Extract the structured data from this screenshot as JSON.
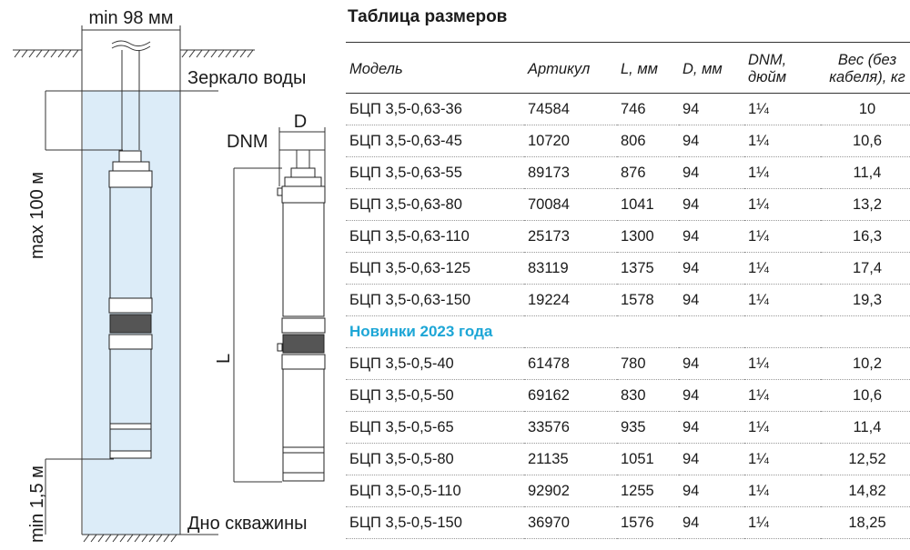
{
  "diagram": {
    "well_width_label": "min 98 мм",
    "water_level_label": "Зеркало воды",
    "max_depth_label": "max 100 м",
    "min_bottom_label": "min 1,5 м",
    "bottom_label": "Дно скважины",
    "dnm_label": "DNM",
    "d_label": "D",
    "l_label": "L",
    "water_color": "#dcecf8"
  },
  "table": {
    "title": "Таблица размеров",
    "headers": [
      "Модель",
      "Артикул",
      "L, мм",
      "D, мм",
      "DNM, дюйм",
      "Вес (без кабеля), кг"
    ],
    "rows": [
      [
        "БЦП 3,5-0,63-36",
        "74584",
        "746",
        "94",
        "1¼",
        "10"
      ],
      [
        "БЦП 3,5-0,63-45",
        "10720",
        "806",
        "94",
        "1¼",
        "10,6"
      ],
      [
        "БЦП 3,5-0,63-55",
        "89173",
        "876",
        "94",
        "1¼",
        "11,4"
      ],
      [
        "БЦП 3,5-0,63-80",
        "70084",
        "1041",
        "94",
        "1¼",
        "13,2"
      ],
      [
        "БЦП 3,5-0,63-110",
        "25173",
        "1300",
        "94",
        "1¼",
        "16,3"
      ],
      [
        "БЦП 3,5-0,63-125",
        "83119",
        "1375",
        "94",
        "1¼",
        "17,4"
      ],
      [
        "БЦП 3,5-0,63-150",
        "19224",
        "1578",
        "94",
        "1¼",
        "19,3"
      ]
    ],
    "section_title": "Новинки 2023 года",
    "section_color": "#1da6d6",
    "new_rows": [
      [
        "БЦП 3,5-0,5-40",
        "61478",
        "780",
        "94",
        "1¼",
        "10,2"
      ],
      [
        "БЦП 3,5-0,5-50",
        "69162",
        "830",
        "94",
        "1¼",
        "10,6"
      ],
      [
        "БЦП 3,5-0,5-65",
        "33576",
        "935",
        "94",
        "1¼",
        "11,4"
      ],
      [
        "БЦП 3,5-0,5-80",
        "21135",
        "1051",
        "94",
        "1¼",
        "12,52"
      ],
      [
        "БЦП 3,5-0,5-110",
        "92902",
        "1255",
        "94",
        "1¼",
        "14,82"
      ],
      [
        "БЦП 3,5-0,5-150",
        "36970",
        "1576",
        "94",
        "1¼",
        "18,25"
      ]
    ]
  }
}
